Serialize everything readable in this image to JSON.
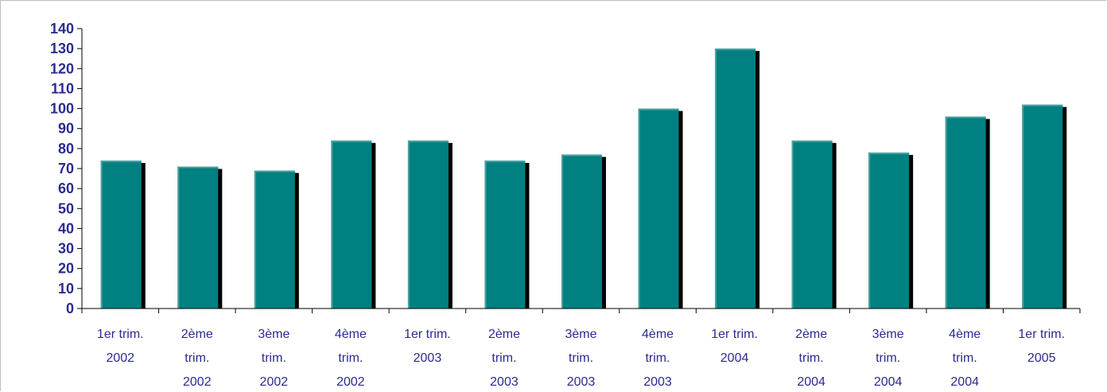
{
  "chart_data": {
    "type": "bar",
    "categories": [
      [
        "1er trim.",
        "2002"
      ],
      [
        "2ème",
        "trim.",
        "2002"
      ],
      [
        "3ème",
        "trim.",
        "2002"
      ],
      [
        "4ème",
        "trim.",
        "2002"
      ],
      [
        "1er trim.",
        "2003"
      ],
      [
        "2ème",
        "trim.",
        "2003"
      ],
      [
        "3ème",
        "trim.",
        "2003"
      ],
      [
        "4ème",
        "trim.",
        "2003"
      ],
      [
        "1er trim.",
        "2004"
      ],
      [
        "2ème",
        "trim.",
        "2004"
      ],
      [
        "3ème",
        "trim.",
        "2004"
      ],
      [
        "4ème",
        "trim.",
        "2004"
      ],
      [
        "1er trim.",
        "2005"
      ]
    ],
    "values": [
      74,
      71,
      69,
      84,
      84,
      74,
      77,
      100,
      130,
      84,
      78,
      96,
      102
    ],
    "ylim": [
      0,
      140
    ],
    "yticks": [
      "0",
      "10",
      "20",
      "30",
      "40",
      "50",
      "60",
      "70",
      "80",
      "90",
      "100",
      "110",
      "120",
      "130",
      "140"
    ],
    "grid": false,
    "legend": "none",
    "colors": {
      "bar": "#008080",
      "bar_highlight": "#4a9f9f",
      "bar_shadow": "#000000",
      "axis": "#000000",
      "tick_text": "#2b2b8f"
    }
  }
}
